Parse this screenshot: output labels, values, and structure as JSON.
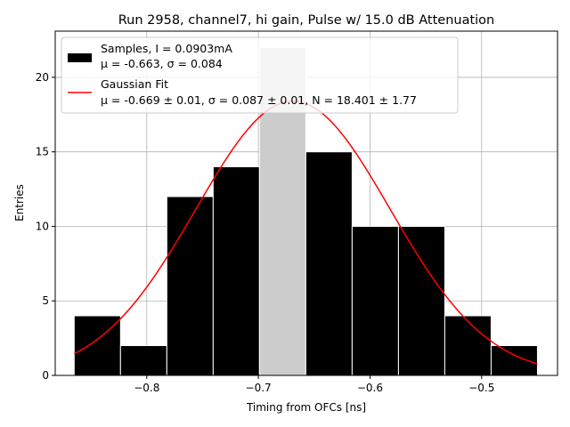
{
  "chart_data": {
    "type": "bar",
    "title": "Run 2958, channel7, hi gain, Pulse w/ 15.0 dB Attenuation",
    "xlabel": "Timing from OFCs [ns]",
    "ylabel": "Entries",
    "xlim": [
      -0.882,
      -0.432
    ],
    "ylim": [
      0,
      23.1
    ],
    "grid": true,
    "legend_position": "top-left",
    "bin_edges": [
      -0.865,
      -0.8235,
      -0.782,
      -0.7405,
      -0.699,
      -0.6575,
      -0.616,
      -0.5745,
      -0.533,
      -0.4915,
      -0.45
    ],
    "counts": [
      4,
      2,
      12,
      14,
      22,
      15,
      10,
      10,
      4,
      2
    ],
    "highlighted_bin": 4,
    "series": [
      {
        "name": "Samples, I = 0.0903mA",
        "name_line2": "μ = -0.663, σ = 0.084",
        "kind": "histogram",
        "color": "#000000",
        "highlight_color": "#cccccc",
        "edge_color": "#ffffff"
      },
      {
        "name": "Gaussian Fit",
        "name_line2": "μ = -0.669 ± 0.01, σ = 0.087 ± 0.01, N = 18.401 ± 1.77",
        "kind": "line",
        "color": "#ff0000",
        "mu": -0.669,
        "sigma": 0.087,
        "amplitude": 18.401,
        "x_range": [
          -0.865,
          -0.45
        ]
      }
    ],
    "x_ticks": [
      {
        "value": -0.8,
        "label": "−0.8"
      },
      {
        "value": -0.7,
        "label": "−0.7"
      },
      {
        "value": -0.6,
        "label": "−0.6"
      },
      {
        "value": -0.5,
        "label": "−0.5"
      }
    ],
    "y_ticks": [
      {
        "value": 0,
        "label": "0"
      },
      {
        "value": 5,
        "label": "5"
      },
      {
        "value": 10,
        "label": "10"
      },
      {
        "value": 15,
        "label": "15"
      },
      {
        "value": 20,
        "label": "20"
      }
    ]
  }
}
